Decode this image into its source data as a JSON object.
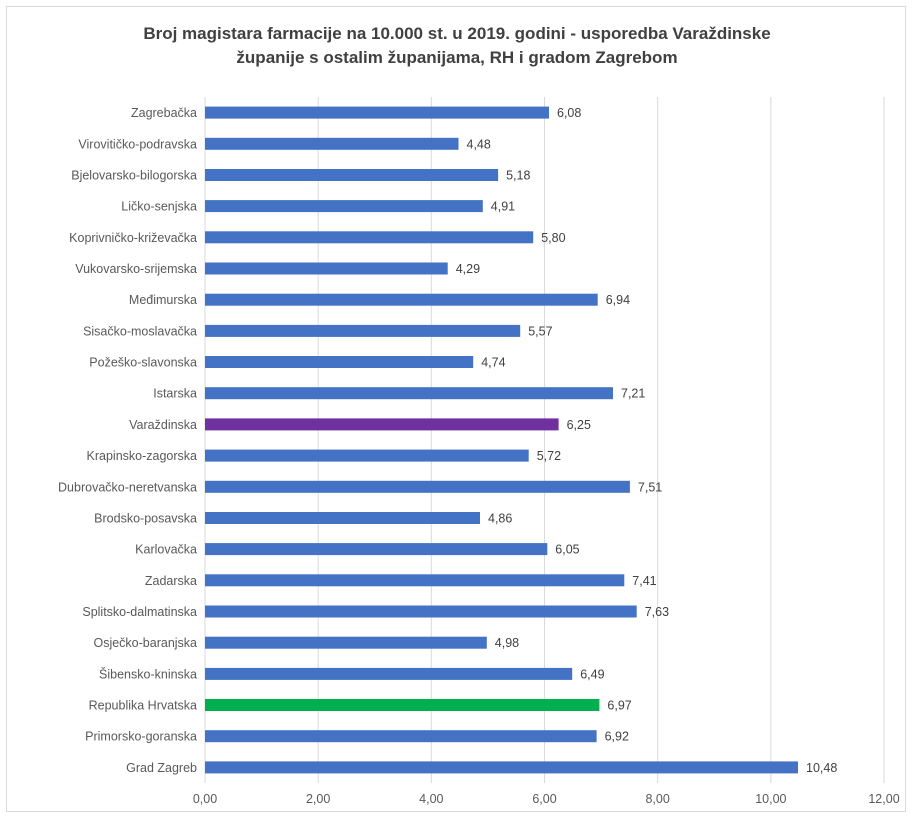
{
  "chart_data": {
    "type": "bar",
    "orientation": "horizontal",
    "title_line1": "Broj magistara farmacije na 10.000 st. u 2019. godini - usporedba Varaždinske",
    "title_line2": "županije s ostalim županijama, RH i gradom Zagrebom",
    "categories": [
      "Zagrebačka",
      "Virovitičko-podravska",
      "Bjelovarsko-bilogorska",
      "Ličko-senjska",
      "Koprivničko-križevačka",
      "Vukovarsko-srijemska",
      "Međimurska",
      "Sisačko-moslavačka",
      "Požeško-slavonska",
      "Istarska",
      "Varaždinska",
      "Krapinsko-zagorska",
      "Dubrovačko-neretvanska",
      "Brodsko-posavska",
      "Karlovačka",
      "Zadarska",
      "Splitsko-dalmatinska",
      "Osječko-baranjska",
      "Šibensko-kninska",
      "Republika Hrvatska",
      "Primorsko-goranska",
      "Grad Zagreb"
    ],
    "values": [
      6.08,
      4.48,
      5.18,
      4.91,
      5.8,
      4.29,
      6.94,
      5.57,
      4.74,
      7.21,
      6.25,
      5.72,
      7.51,
      4.86,
      6.05,
      7.41,
      7.63,
      4.98,
      6.49,
      6.97,
      6.92,
      10.48
    ],
    "value_labels": [
      "6,08",
      "4,48",
      "5,18",
      "4,91",
      "5,80",
      "4,29",
      "6,94",
      "5,57",
      "4,74",
      "7,21",
      "6,25",
      "5,72",
      "7,51",
      "4,86",
      "6,05",
      "7,41",
      "7,63",
      "4,98",
      "6,49",
      "6,97",
      "6,92",
      "10,48"
    ],
    "xlim": [
      0,
      12
    ],
    "x_ticks": [
      0,
      2,
      4,
      6,
      8,
      10,
      12
    ],
    "x_tick_labels": [
      "0,00",
      "2,00",
      "4,00",
      "6,00",
      "8,00",
      "10,00",
      "12,00"
    ],
    "grid": true,
    "colors": {
      "default": "#4472c4",
      "Varaždinska": "#7030a0",
      "Republika Hrvatska": "#00b050",
      "grid": "#d9d9d9"
    }
  }
}
